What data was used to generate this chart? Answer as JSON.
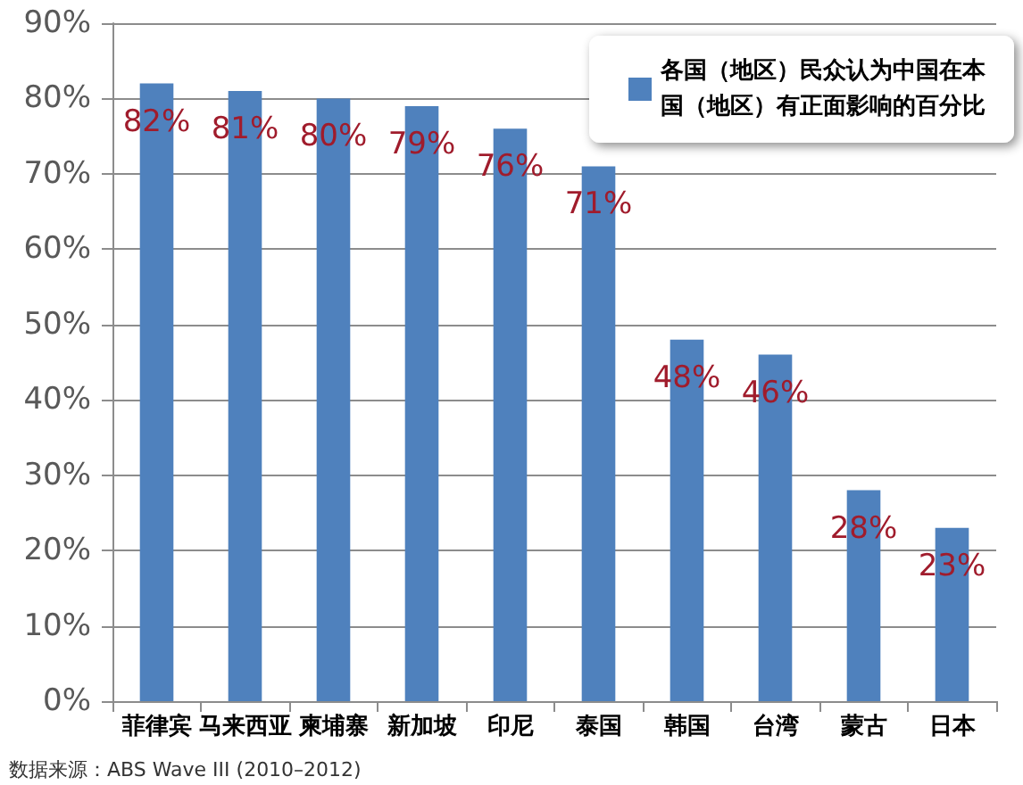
{
  "chart_data": {
    "type": "bar",
    "categories": [
      "菲律宾",
      "马来西亚",
      "柬埔寨",
      "新加坡",
      "印尼",
      "泰国",
      "韩国",
      "台湾",
      "蒙古",
      "日本"
    ],
    "series": [
      {
        "name": "各国（地区）民众认为中国在本国（地区）有正面影响的百分比",
        "color": "#4f81bd",
        "values": [
          82,
          81,
          80,
          79,
          76,
          71,
          48,
          46,
          28,
          23
        ],
        "value_labels": [
          "82%",
          "81%",
          "80%",
          "79%",
          "76%",
          "71%",
          "48%",
          "46%",
          "28%",
          "23%"
        ]
      }
    ],
    "ylim": [
      0,
      90
    ],
    "yticks": [
      {
        "value": 0,
        "label": "0%"
      },
      {
        "value": 10,
        "label": "10%"
      },
      {
        "value": 20,
        "label": "20%"
      },
      {
        "value": 30,
        "label": "30%"
      },
      {
        "value": 40,
        "label": "40%"
      },
      {
        "value": 50,
        "label": "50%"
      },
      {
        "value": 60,
        "label": "60%"
      },
      {
        "value": 70,
        "label": "70%"
      },
      {
        "value": 80,
        "label": "80%"
      },
      {
        "value": 90,
        "label": "90%"
      }
    ],
    "grid": "y",
    "legend": "top right",
    "annotations": [
      "数据来源：ABS Wave III (2010–2012)"
    ]
  }
}
